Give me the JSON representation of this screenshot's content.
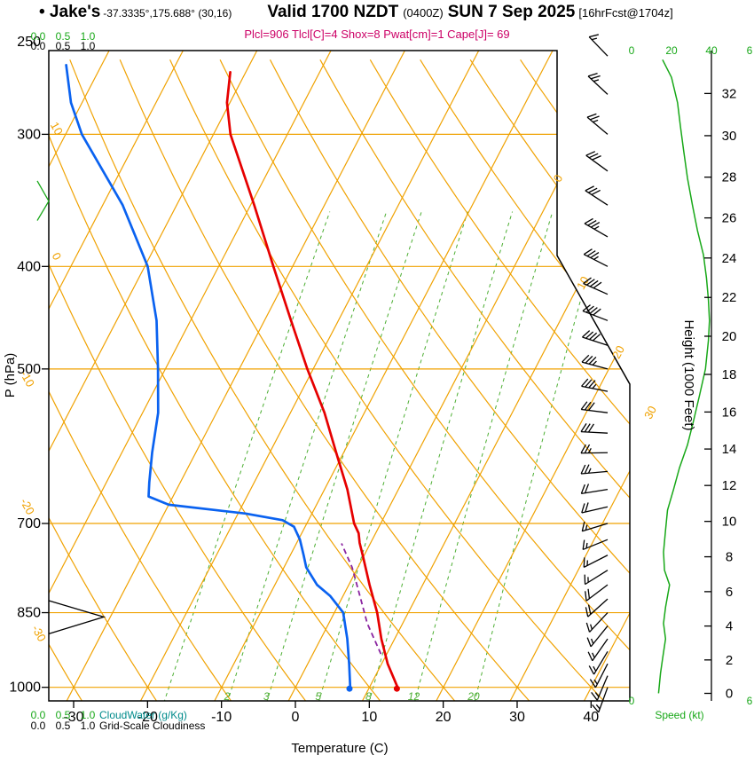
{
  "header": {
    "station": "• Jake's",
    "coords": "-37.3335°,175.688° (30,16)",
    "valid_main": "Valid 1700 NZDT",
    "valid_z": "(0400Z)",
    "valid_date": "SUN 7 Sep 2025",
    "fcst_tag": "[16hrFcst@1704z]",
    "params": "Plcl=906 Tlcl[C]=4 Shox=8 Pwat[cm]=1 Cape[J]= 69"
  },
  "axes": {
    "pressure": {
      "title": "P (hPa)",
      "ticks": [
        250,
        300,
        400,
        500,
        700,
        850,
        1000
      ]
    },
    "temperature": {
      "title": "Temperature (C)",
      "ticks": [
        -30,
        -20,
        -10,
        0,
        10,
        20,
        30,
        40
      ]
    },
    "height": {
      "title": "Height (1000 Feet)",
      "ticks": [
        0,
        2,
        4,
        6,
        8,
        10,
        12,
        14,
        16,
        18,
        20,
        22,
        24,
        26,
        28,
        30,
        32
      ]
    },
    "speed": {
      "title": "Speed (kt)",
      "top_labels": [
        "0",
        "20",
        "40"
      ],
      "edge_label": "6",
      "bottom_label": "0"
    },
    "cloudwater": {
      "label": "CloudWater (g/Kg)",
      "scale": [
        "0.0",
        "0.5",
        "1.0"
      ]
    },
    "cloudiness": {
      "label": "Grid-Scale Cloudiness",
      "scale": [
        "0.0",
        "0.5",
        "1.0"
      ]
    }
  },
  "grid_labels": {
    "isotherms": [
      0,
      10,
      20,
      30
    ],
    "dry_adiabats": [
      10,
      0,
      -10,
      -20,
      -30
    ],
    "mixing_ratio": [
      2,
      3,
      5,
      8,
      12,
      20
    ]
  },
  "colors": {
    "grid_orange": "#f0a202",
    "mixing_green": "#4cae32",
    "speed_green": "#18a818",
    "teal": "#008b8b",
    "temp_red": "#e60000",
    "dewpoint_blue": "#0a62f0",
    "parcel_purple": "#8a24a0",
    "params_magenta": "#cc0066"
  },
  "chart_data": {
    "type": "line",
    "subtype": "skewt_log_p_sounding",
    "pressure_range_hPa": [
      1030,
      250
    ],
    "temperature_axis_range_C": [
      -33,
      46
    ],
    "temperature_curve": [
      {
        "p": 1000,
        "t": 13.8
      },
      {
        "p": 950,
        "t": 10.8
      },
      {
        "p": 900,
        "t": 8.2
      },
      {
        "p": 850,
        "t": 5.8
      },
      {
        "p": 800,
        "t": 2.8
      },
      {
        "p": 750,
        "t": -0.2
      },
      {
        "p": 730,
        "t": -1.5
      },
      {
        "p": 715,
        "t": -2.3
      },
      {
        "p": 700,
        "t": -3.6
      },
      {
        "p": 650,
        "t": -6.9
      },
      {
        "p": 600,
        "t": -11.0
      },
      {
        "p": 550,
        "t": -15.4
      },
      {
        "p": 500,
        "t": -20.8
      },
      {
        "p": 450,
        "t": -26.4
      },
      {
        "p": 400,
        "t": -32.6
      },
      {
        "p": 350,
        "t": -39.5
      },
      {
        "p": 300,
        "t": -47.7
      },
      {
        "p": 280,
        "t": -50.4
      },
      {
        "p": 262,
        "t": -52.1
      }
    ],
    "dewpoint_curve": [
      {
        "p": 1000,
        "t": 7.4
      },
      {
        "p": 950,
        "t": 5.6
      },
      {
        "p": 900,
        "t": 3.6
      },
      {
        "p": 850,
        "t": 1.2
      },
      {
        "p": 820,
        "t": -1.7
      },
      {
        "p": 800,
        "t": -4.3
      },
      {
        "p": 770,
        "t": -7.0
      },
      {
        "p": 750,
        "t": -8.2
      },
      {
        "p": 725,
        "t": -9.8
      },
      {
        "p": 705,
        "t": -11.5
      },
      {
        "p": 695,
        "t": -13.5
      },
      {
        "p": 685,
        "t": -19.0
      },
      {
        "p": 672,
        "t": -30.0
      },
      {
        "p": 660,
        "t": -33.3
      },
      {
        "p": 640,
        "t": -34.2
      },
      {
        "p": 600,
        "t": -35.9
      },
      {
        "p": 550,
        "t": -37.9
      },
      {
        "p": 500,
        "t": -41.0
      },
      {
        "p": 450,
        "t": -44.6
      },
      {
        "p": 400,
        "t": -49.6
      },
      {
        "p": 350,
        "t": -57.3
      },
      {
        "p": 300,
        "t": -67.8
      },
      {
        "p": 280,
        "t": -71.5
      },
      {
        "p": 258,
        "t": -74.8
      }
    ],
    "parcel_curve": [
      {
        "p": 930,
        "t": 9.2
      },
      {
        "p": 870,
        "t": 5.2
      },
      {
        "p": 820,
        "t": 2.3
      },
      {
        "p": 770,
        "t": -0.8
      },
      {
        "p": 731,
        "t": -3.9
      }
    ],
    "surface_markers": [
      {
        "name": "temperature-dot",
        "p": 1003,
        "t": 13.8
      },
      {
        "name": "dewpoint-dot",
        "p": 1003,
        "t": 7.4
      }
    ],
    "wind_barbs": [
      {
        "p": 1000,
        "dir": 200,
        "kt": 13
      },
      {
        "p": 975,
        "dir": 203,
        "kt": 14
      },
      {
        "p": 950,
        "dir": 207,
        "kt": 15
      },
      {
        "p": 925,
        "dir": 211,
        "kt": 16
      },
      {
        "p": 900,
        "dir": 215,
        "kt": 17
      },
      {
        "p": 875,
        "dir": 219,
        "kt": 16
      },
      {
        "p": 850,
        "dir": 223,
        "kt": 17
      },
      {
        "p": 825,
        "dir": 228,
        "kt": 18
      },
      {
        "p": 800,
        "dir": 233,
        "kt": 19
      },
      {
        "p": 775,
        "dir": 238,
        "kt": 17
      },
      {
        "p": 750,
        "dir": 243,
        "kt": 16
      },
      {
        "p": 725,
        "dir": 248,
        "kt": 17
      },
      {
        "p": 700,
        "dir": 253,
        "kt": 17
      },
      {
        "p": 675,
        "dir": 257,
        "kt": 18
      },
      {
        "p": 650,
        "dir": 261,
        "kt": 21
      },
      {
        "p": 625,
        "dir": 265,
        "kt": 24
      },
      {
        "p": 600,
        "dir": 269,
        "kt": 27
      },
      {
        "p": 575,
        "dir": 273,
        "kt": 29
      },
      {
        "p": 550,
        "dir": 277,
        "kt": 31
      },
      {
        "p": 525,
        "dir": 281,
        "kt": 34
      },
      {
        "p": 500,
        "dir": 285,
        "kt": 37
      },
      {
        "p": 475,
        "dir": 288,
        "kt": 38
      },
      {
        "p": 450,
        "dir": 291,
        "kt": 39
      },
      {
        "p": 425,
        "dir": 294,
        "kt": 38
      },
      {
        "p": 400,
        "dir": 297,
        "kt": 37
      },
      {
        "p": 375,
        "dir": 300,
        "kt": 35
      },
      {
        "p": 350,
        "dir": 303,
        "kt": 31
      },
      {
        "p": 325,
        "dir": 306,
        "kt": 28
      },
      {
        "p": 300,
        "dir": 310,
        "kt": 26
      },
      {
        "p": 275,
        "dir": 313,
        "kt": 23
      },
      {
        "p": 253,
        "dir": 316,
        "kt": 16
      }
    ],
    "speed_profile": [
      {
        "p": 1013,
        "kt": 13.5
      },
      {
        "p": 970,
        "kt": 14.5
      },
      {
        "p": 940,
        "kt": 15.5
      },
      {
        "p": 900,
        "kt": 17
      },
      {
        "p": 870,
        "kt": 16
      },
      {
        "p": 840,
        "kt": 17
      },
      {
        "p": 800,
        "kt": 19
      },
      {
        "p": 775,
        "kt": 16.5
      },
      {
        "p": 745,
        "kt": 16
      },
      {
        "p": 710,
        "kt": 17
      },
      {
        "p": 680,
        "kt": 18
      },
      {
        "p": 650,
        "kt": 21
      },
      {
        "p": 620,
        "kt": 24
      },
      {
        "p": 590,
        "kt": 28
      },
      {
        "p": 560,
        "kt": 31
      },
      {
        "p": 530,
        "kt": 34
      },
      {
        "p": 500,
        "kt": 37
      },
      {
        "p": 470,
        "kt": 38.5
      },
      {
        "p": 450,
        "kt": 39
      },
      {
        "p": 430,
        "kt": 38.5
      },
      {
        "p": 410,
        "kt": 37.5
      },
      {
        "p": 390,
        "kt": 36
      },
      {
        "p": 370,
        "kt": 33
      },
      {
        "p": 350,
        "kt": 30.5
      },
      {
        "p": 330,
        "kt": 28
      },
      {
        "p": 310,
        "kt": 26
      },
      {
        "p": 295,
        "kt": 24.5
      },
      {
        "p": 280,
        "kt": 23
      },
      {
        "p": 265,
        "kt": 20
      },
      {
        "p": 255,
        "kt": 15.5
      }
    ],
    "cloudiness_profile": [
      {
        "p": 890,
        "v": 0
      },
      {
        "p": 858,
        "v": 1.0
      },
      {
        "p": 828,
        "v": 0
      }
    ],
    "cloudwater_profile": [
      {
        "p": 362,
        "v": 0
      },
      {
        "p": 347,
        "v": 0.25
      },
      {
        "p": 332,
        "v": 0
      }
    ]
  }
}
